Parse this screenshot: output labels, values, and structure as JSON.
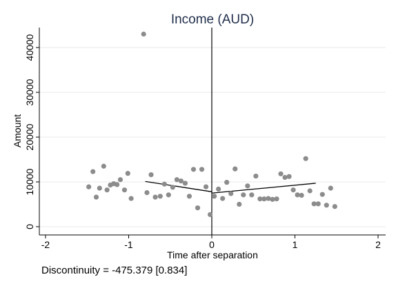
{
  "chart_data": {
    "type": "scatter",
    "title": "Income (AUD)",
    "xlabel": "Time after separation",
    "ylabel": "Amount",
    "xlim": [
      -2,
      2
    ],
    "ylim": [
      0,
      45000
    ],
    "xticks": [
      -2,
      -1,
      0,
      1,
      2
    ],
    "xtick_labels": [
      "-2",
      "-1",
      "0",
      "1",
      "2"
    ],
    "yticks": [
      0,
      10000,
      20000,
      30000,
      40000
    ],
    "ytick_labels": [
      "0",
      "10000",
      "20000",
      "30000",
      "40000"
    ],
    "grid": true,
    "cutoff_x": 0,
    "points": [
      {
        "x": -1.48,
        "y": 8900
      },
      {
        "x": -1.43,
        "y": 12300
      },
      {
        "x": -1.39,
        "y": 6600
      },
      {
        "x": -1.35,
        "y": 8600
      },
      {
        "x": -1.3,
        "y": 13500
      },
      {
        "x": -1.26,
        "y": 8200
      },
      {
        "x": -1.22,
        "y": 9300
      },
      {
        "x": -1.18,
        "y": 9600
      },
      {
        "x": -1.14,
        "y": 9400
      },
      {
        "x": -1.1,
        "y": 10500
      },
      {
        "x": -1.05,
        "y": 8200
      },
      {
        "x": -1.01,
        "y": 11900
      },
      {
        "x": -0.97,
        "y": 6300
      },
      {
        "x": -0.82,
        "y": 43000
      },
      {
        "x": -0.78,
        "y": 7600
      },
      {
        "x": -0.73,
        "y": 11600
      },
      {
        "x": -0.68,
        "y": 6600
      },
      {
        "x": -0.62,
        "y": 6800
      },
      {
        "x": -0.57,
        "y": 9500
      },
      {
        "x": -0.52,
        "y": 7100
      },
      {
        "x": -0.47,
        "y": 8800
      },
      {
        "x": -0.42,
        "y": 10500
      },
      {
        "x": -0.37,
        "y": 10200
      },
      {
        "x": -0.32,
        "y": 9700
      },
      {
        "x": -0.27,
        "y": 6800
      },
      {
        "x": -0.22,
        "y": 12800
      },
      {
        "x": -0.17,
        "y": 4200
      },
      {
        "x": -0.12,
        "y": 12800
      },
      {
        "x": -0.07,
        "y": 8900
      },
      {
        "x": -0.02,
        "y": 2700
      },
      {
        "x": 0.03,
        "y": 6800
      },
      {
        "x": 0.08,
        "y": 8400
      },
      {
        "x": 0.13,
        "y": 6300
      },
      {
        "x": 0.18,
        "y": 9900
      },
      {
        "x": 0.23,
        "y": 7400
      },
      {
        "x": 0.28,
        "y": 12900
      },
      {
        "x": 0.33,
        "y": 5000
      },
      {
        "x": 0.38,
        "y": 7100
      },
      {
        "x": 0.43,
        "y": 9100
      },
      {
        "x": 0.48,
        "y": 7100
      },
      {
        "x": 0.53,
        "y": 11300
      },
      {
        "x": 0.58,
        "y": 6200
      },
      {
        "x": 0.63,
        "y": 6200
      },
      {
        "x": 0.68,
        "y": 6300
      },
      {
        "x": 0.73,
        "y": 6100
      },
      {
        "x": 0.78,
        "y": 6200
      },
      {
        "x": 0.83,
        "y": 11800
      },
      {
        "x": 0.88,
        "y": 11000
      },
      {
        "x": 0.93,
        "y": 11200
      },
      {
        "x": 0.98,
        "y": 8200
      },
      {
        "x": 1.03,
        "y": 7100
      },
      {
        "x": 1.08,
        "y": 7000
      },
      {
        "x": 1.13,
        "y": 15200
      },
      {
        "x": 1.18,
        "y": 8000
      },
      {
        "x": 1.23,
        "y": 5100
      },
      {
        "x": 1.28,
        "y": 5100
      },
      {
        "x": 1.33,
        "y": 7200
      },
      {
        "x": 1.38,
        "y": 4800
      },
      {
        "x": 1.43,
        "y": 8600
      },
      {
        "x": 1.48,
        "y": 4500
      }
    ],
    "fit_lines": [
      {
        "x": [
          -0.8,
          0
        ],
        "y": [
          10100,
          7800
        ]
      },
      {
        "x": [
          0,
          1.25
        ],
        "y": [
          7500,
          9700
        ]
      }
    ],
    "colors": {
      "points": "#8c8c8c",
      "fit_line": "#000000",
      "title": "#1f2d4a",
      "grid": "#e8e8e8"
    }
  },
  "note": "Discontinuity = -475.379 [0.834]"
}
